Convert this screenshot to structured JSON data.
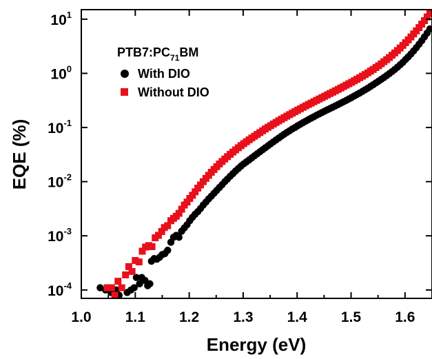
{
  "chart_data": {
    "type": "scatter",
    "xlabel": "Energy (eV)",
    "ylabel": "EQE (%)",
    "xlim": [
      1.0,
      1.65
    ],
    "ylim": [
      7e-05,
      15
    ],
    "yscale": "log",
    "grid": false,
    "legend_placement": "top-left",
    "legend_title": {
      "base": "PTB7:PC",
      "sub": "71",
      "tail": "BM"
    },
    "x_ticks": [
      {
        "v": 1.0,
        "label": "1.0"
      },
      {
        "v": 1.1,
        "label": "1.1"
      },
      {
        "v": 1.2,
        "label": "1.2"
      },
      {
        "v": 1.3,
        "label": "1.3"
      },
      {
        "v": 1.4,
        "label": "1.4"
      },
      {
        "v": 1.5,
        "label": "1.5"
      },
      {
        "v": 1.6,
        "label": "1.6"
      }
    ],
    "y_ticks": [
      {
        "v": 0.0001,
        "base": "10",
        "exp": "-4"
      },
      {
        "v": 0.001,
        "base": "10",
        "exp": "-3"
      },
      {
        "v": 0.01,
        "base": "10",
        "exp": "-2"
      },
      {
        "v": 0.1,
        "base": "10",
        "exp": "-1"
      },
      {
        "v": 1,
        "base": "10",
        "exp": "0"
      },
      {
        "v": 10,
        "base": "10",
        "exp": "1"
      }
    ],
    "series": [
      {
        "name": "With DIO",
        "marker": "circle",
        "color": "#000000",
        "points": [
          [
            1.035,
            0.00011
          ],
          [
            1.045,
            0.0001
          ],
          [
            1.055,
            9e-05
          ],
          [
            1.065,
            0.0001
          ],
          [
            1.07,
            8e-05
          ],
          [
            1.085,
            9e-05
          ],
          [
            1.092,
            0.0001
          ],
          [
            1.098,
            0.00011
          ],
          [
            1.102,
            0.00017
          ],
          [
            1.108,
            0.00013
          ],
          [
            1.112,
            0.00017
          ],
          [
            1.118,
            0.00015
          ],
          [
            1.123,
            0.00012
          ],
          [
            1.127,
            0.00013
          ],
          [
            1.13,
            0.00034
          ],
          [
            1.135,
            0.00038
          ],
          [
            1.14,
            0.00037
          ],
          [
            1.145,
            0.0004
          ],
          [
            1.15,
            0.00045
          ],
          [
            1.155,
            0.00047
          ],
          [
            1.16,
            0.00054
          ],
          [
            1.166,
            0.00076
          ],
          [
            1.171,
            0.00094
          ],
          [
            1.176,
            0.00102
          ],
          [
            1.181,
            0.00094
          ],
          [
            1.186,
            0.00122
          ],
          [
            1.191,
            0.0014
          ],
          [
            1.196,
            0.0016
          ],
          [
            1.201,
            0.0019
          ],
          [
            1.206,
            0.0022
          ],
          [
            1.211,
            0.0025
          ],
          [
            1.216,
            0.0028
          ],
          [
            1.221,
            0.0032
          ],
          [
            1.226,
            0.0037
          ],
          [
            1.231,
            0.0042
          ],
          [
            1.236,
            0.0048
          ],
          [
            1.241,
            0.0054
          ],
          [
            1.246,
            0.0061
          ],
          [
            1.251,
            0.0069
          ],
          [
            1.256,
            0.0078
          ],
          [
            1.261,
            0.0088
          ],
          [
            1.266,
            0.01
          ],
          [
            1.271,
            0.0112
          ],
          [
            1.276,
            0.0126
          ],
          [
            1.281,
            0.0141
          ],
          [
            1.286,
            0.0158
          ],
          [
            1.291,
            0.0175
          ],
          [
            1.296,
            0.0194
          ],
          [
            1.301,
            0.0213
          ],
          [
            1.306,
            0.0232
          ],
          [
            1.311,
            0.0252
          ],
          [
            1.316,
            0.0275
          ],
          [
            1.321,
            0.03
          ],
          [
            1.326,
            0.0327
          ],
          [
            1.331,
            0.0356
          ],
          [
            1.336,
            0.0388
          ],
          [
            1.341,
            0.0422
          ],
          [
            1.346,
            0.0459
          ],
          [
            1.351,
            0.05
          ],
          [
            1.356,
            0.0543
          ],
          [
            1.361,
            0.059
          ],
          [
            1.366,
            0.064
          ],
          [
            1.371,
            0.0694
          ],
          [
            1.376,
            0.075
          ],
          [
            1.381,
            0.081
          ],
          [
            1.386,
            0.087
          ],
          [
            1.391,
            0.094
          ],
          [
            1.396,
            0.1
          ],
          [
            1.401,
            0.108
          ],
          [
            1.406,
            0.115
          ],
          [
            1.411,
            0.123
          ],
          [
            1.416,
            0.131
          ],
          [
            1.421,
            0.14
          ],
          [
            1.426,
            0.149
          ],
          [
            1.431,
            0.158
          ],
          [
            1.436,
            0.168
          ],
          [
            1.441,
            0.178
          ],
          [
            1.446,
            0.189
          ],
          [
            1.451,
            0.2
          ],
          [
            1.456,
            0.212
          ],
          [
            1.461,
            0.224
          ],
          [
            1.466,
            0.237
          ],
          [
            1.471,
            0.251
          ],
          [
            1.476,
            0.266
          ],
          [
            1.481,
            0.282
          ],
          [
            1.486,
            0.299
          ],
          [
            1.491,
            0.317
          ],
          [
            1.496,
            0.337
          ],
          [
            1.501,
            0.358
          ],
          [
            1.506,
            0.382
          ],
          [
            1.511,
            0.407
          ],
          [
            1.516,
            0.434
          ],
          [
            1.521,
            0.464
          ],
          [
            1.526,
            0.497
          ],
          [
            1.531,
            0.533
          ],
          [
            1.536,
            0.573
          ],
          [
            1.541,
            0.617
          ],
          [
            1.546,
            0.665
          ],
          [
            1.551,
            0.718
          ],
          [
            1.556,
            0.776
          ],
          [
            1.561,
            0.84
          ],
          [
            1.566,
            0.91
          ],
          [
            1.571,
            0.99
          ],
          [
            1.576,
            1.08
          ],
          [
            1.581,
            1.18
          ],
          [
            1.586,
            1.3
          ],
          [
            1.591,
            1.44
          ],
          [
            1.596,
            1.6
          ],
          [
            1.601,
            1.8
          ],
          [
            1.606,
            2.02
          ],
          [
            1.611,
            2.28
          ],
          [
            1.616,
            2.6
          ],
          [
            1.621,
            2.98
          ],
          [
            1.626,
            3.45
          ],
          [
            1.631,
            4.0
          ],
          [
            1.636,
            4.7
          ],
          [
            1.641,
            5.55
          ],
          [
            1.646,
            6.6
          ]
        ]
      },
      {
        "name": "Without DIO",
        "marker": "square",
        "color": "#e8101a",
        "points": [
          [
            1.048,
            0.00011
          ],
          [
            1.056,
            0.00011
          ],
          [
            1.062,
            8e-05
          ],
          [
            1.068,
            0.000145
          ],
          [
            1.075,
            0.00011
          ],
          [
            1.082,
            0.00019
          ],
          [
            1.088,
            0.00027
          ],
          [
            1.094,
            0.00022
          ],
          [
            1.1,
            0.00035
          ],
          [
            1.107,
            0.00033
          ],
          [
            1.113,
            0.00052
          ],
          [
            1.119,
            0.00062
          ],
          [
            1.125,
            0.00066
          ],
          [
            1.131,
            0.00063
          ],
          [
            1.137,
            0.00092
          ],
          [
            1.143,
            0.00102
          ],
          [
            1.149,
            0.0012
          ],
          [
            1.154,
            0.00142
          ],
          [
            1.16,
            0.00154
          ],
          [
            1.166,
            0.0019
          ],
          [
            1.171,
            0.0021
          ],
          [
            1.176,
            0.0023
          ],
          [
            1.181,
            0.0026
          ],
          [
            1.186,
            0.0031
          ],
          [
            1.191,
            0.0037
          ],
          [
            1.196,
            0.0042
          ],
          [
            1.201,
            0.0049
          ],
          [
            1.206,
            0.0056
          ],
          [
            1.211,
            0.0065
          ],
          [
            1.216,
            0.0076
          ],
          [
            1.221,
            0.0087
          ],
          [
            1.226,
            0.01
          ],
          [
            1.231,
            0.0115
          ],
          [
            1.236,
            0.0131
          ],
          [
            1.241,
            0.0149
          ],
          [
            1.246,
            0.0168
          ],
          [
            1.251,
            0.0189
          ],
          [
            1.256,
            0.0212
          ],
          [
            1.261,
            0.0236
          ],
          [
            1.266,
            0.0262
          ],
          [
            1.271,
            0.029
          ],
          [
            1.276,
            0.032
          ],
          [
            1.281,
            0.0352
          ],
          [
            1.286,
            0.0386
          ],
          [
            1.291,
            0.0423
          ],
          [
            1.296,
            0.0462
          ],
          [
            1.301,
            0.0503
          ],
          [
            1.306,
            0.0546
          ],
          [
            1.311,
            0.0592
          ],
          [
            1.316,
            0.064
          ],
          [
            1.321,
            0.0691
          ],
          [
            1.326,
            0.0746
          ],
          [
            1.331,
            0.0805
          ],
          [
            1.336,
            0.087
          ],
          [
            1.341,
            0.094
          ],
          [
            1.346,
            0.101
          ],
          [
            1.351,
            0.108
          ],
          [
            1.356,
            0.116
          ],
          [
            1.361,
            0.124
          ],
          [
            1.366,
            0.133
          ],
          [
            1.371,
            0.142
          ],
          [
            1.376,
            0.152
          ],
          [
            1.381,
            0.162
          ],
          [
            1.386,
            0.173
          ],
          [
            1.391,
            0.184
          ],
          [
            1.396,
            0.196
          ],
          [
            1.401,
            0.209
          ],
          [
            1.406,
            0.222
          ],
          [
            1.411,
            0.236
          ],
          [
            1.416,
            0.251
          ],
          [
            1.421,
            0.266
          ],
          [
            1.426,
            0.282
          ],
          [
            1.431,
            0.299
          ],
          [
            1.436,
            0.317
          ],
          [
            1.441,
            0.336
          ],
          [
            1.446,
            0.356
          ],
          [
            1.451,
            0.377
          ],
          [
            1.456,
            0.4
          ],
          [
            1.461,
            0.424
          ],
          [
            1.466,
            0.449
          ],
          [
            1.471,
            0.476
          ],
          [
            1.476,
            0.505
          ],
          [
            1.481,
            0.536
          ],
          [
            1.486,
            0.569
          ],
          [
            1.491,
            0.605
          ],
          [
            1.496,
            0.643
          ],
          [
            1.501,
            0.684
          ],
          [
            1.506,
            0.729
          ],
          [
            1.511,
            0.777
          ],
          [
            1.516,
            0.83
          ],
          [
            1.521,
            0.887
          ],
          [
            1.526,
            0.95
          ],
          [
            1.531,
            1.02
          ],
          [
            1.536,
            1.1
          ],
          [
            1.541,
            1.18
          ],
          [
            1.546,
            1.28
          ],
          [
            1.551,
            1.38
          ],
          [
            1.556,
            1.5
          ],
          [
            1.561,
            1.64
          ],
          [
            1.566,
            1.79
          ],
          [
            1.571,
            1.96
          ],
          [
            1.576,
            2.16
          ],
          [
            1.581,
            2.38
          ],
          [
            1.586,
            2.64
          ],
          [
            1.591,
            2.94
          ],
          [
            1.596,
            3.28
          ],
          [
            1.601,
            3.68
          ],
          [
            1.606,
            4.15
          ],
          [
            1.611,
            4.7
          ],
          [
            1.616,
            5.35
          ],
          [
            1.621,
            6.1
          ],
          [
            1.626,
            7.0
          ],
          [
            1.631,
            8.1
          ],
          [
            1.636,
            9.4
          ],
          [
            1.641,
            11.0
          ],
          [
            1.646,
            12.8
          ]
        ]
      }
    ]
  }
}
